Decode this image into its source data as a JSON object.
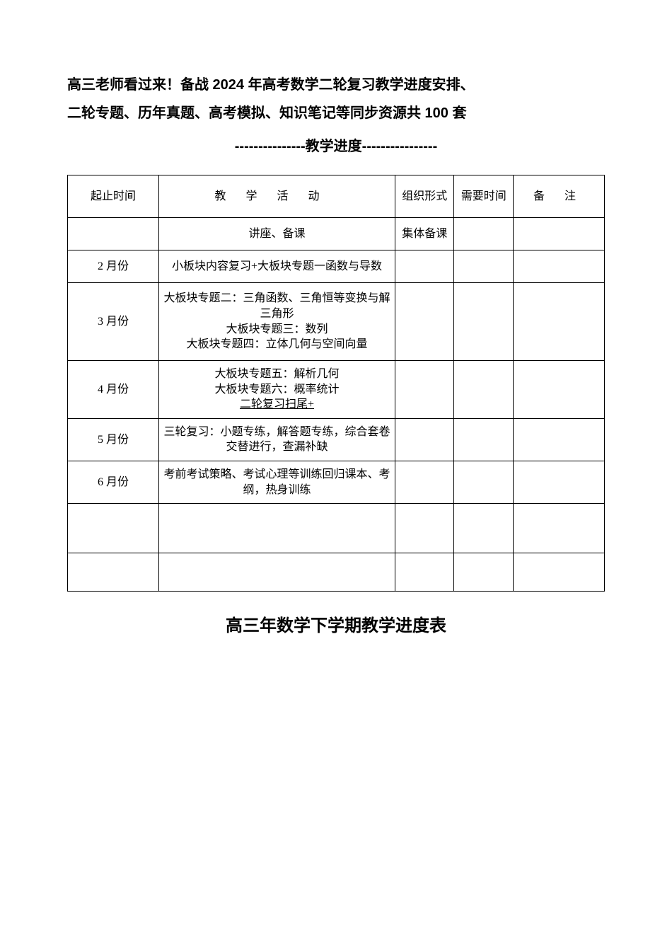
{
  "header": {
    "line1": "高三老师看过来！备战 2024 年高考数学二轮复习教学进度安排、",
    "line2": "二轮专题、历年真题、高考模拟、知识笔记等同步资源共 100 套",
    "divider": "---------------教学进度----------------"
  },
  "table": {
    "columns": {
      "time": "起止时间",
      "activity": "教学活动",
      "form": "组织形式",
      "need": "需要时间",
      "note": "备 注"
    },
    "rows": [
      {
        "time": "",
        "activity": "讲座、备课",
        "form": "集体备课",
        "need": "",
        "note": ""
      },
      {
        "time": "2 月份",
        "activity": "小板块内容复习+大板块专题一函数与导数",
        "form": "",
        "need": "",
        "note": ""
      },
      {
        "time": "3 月份",
        "activity": "大板块专题二：三角函数、三角恒等变换与解三角形\n大板块专题三：数列\n大板块专题四：立体几何与空间向量",
        "form": "",
        "need": "",
        "note": ""
      },
      {
        "time": "4 月份",
        "activity_plain": "大板块专题五：解析几何\n大板块专题六：概率统计",
        "activity_underlined": "二轮复习扫尾+",
        "form": "",
        "need": "",
        "note": ""
      },
      {
        "time": "5 月份",
        "activity": "三轮复习：小题专练，解答题专练，综合套卷交替进行，查漏补缺",
        "form": "",
        "need": "",
        "note": ""
      },
      {
        "time": "6 月份",
        "activity": "考前考试策略、考试心理等训练回归课本、考纲，热身训练",
        "form": "",
        "need": "",
        "note": ""
      }
    ]
  },
  "footer": {
    "title": "高三年数学下学期教学进度表"
  }
}
